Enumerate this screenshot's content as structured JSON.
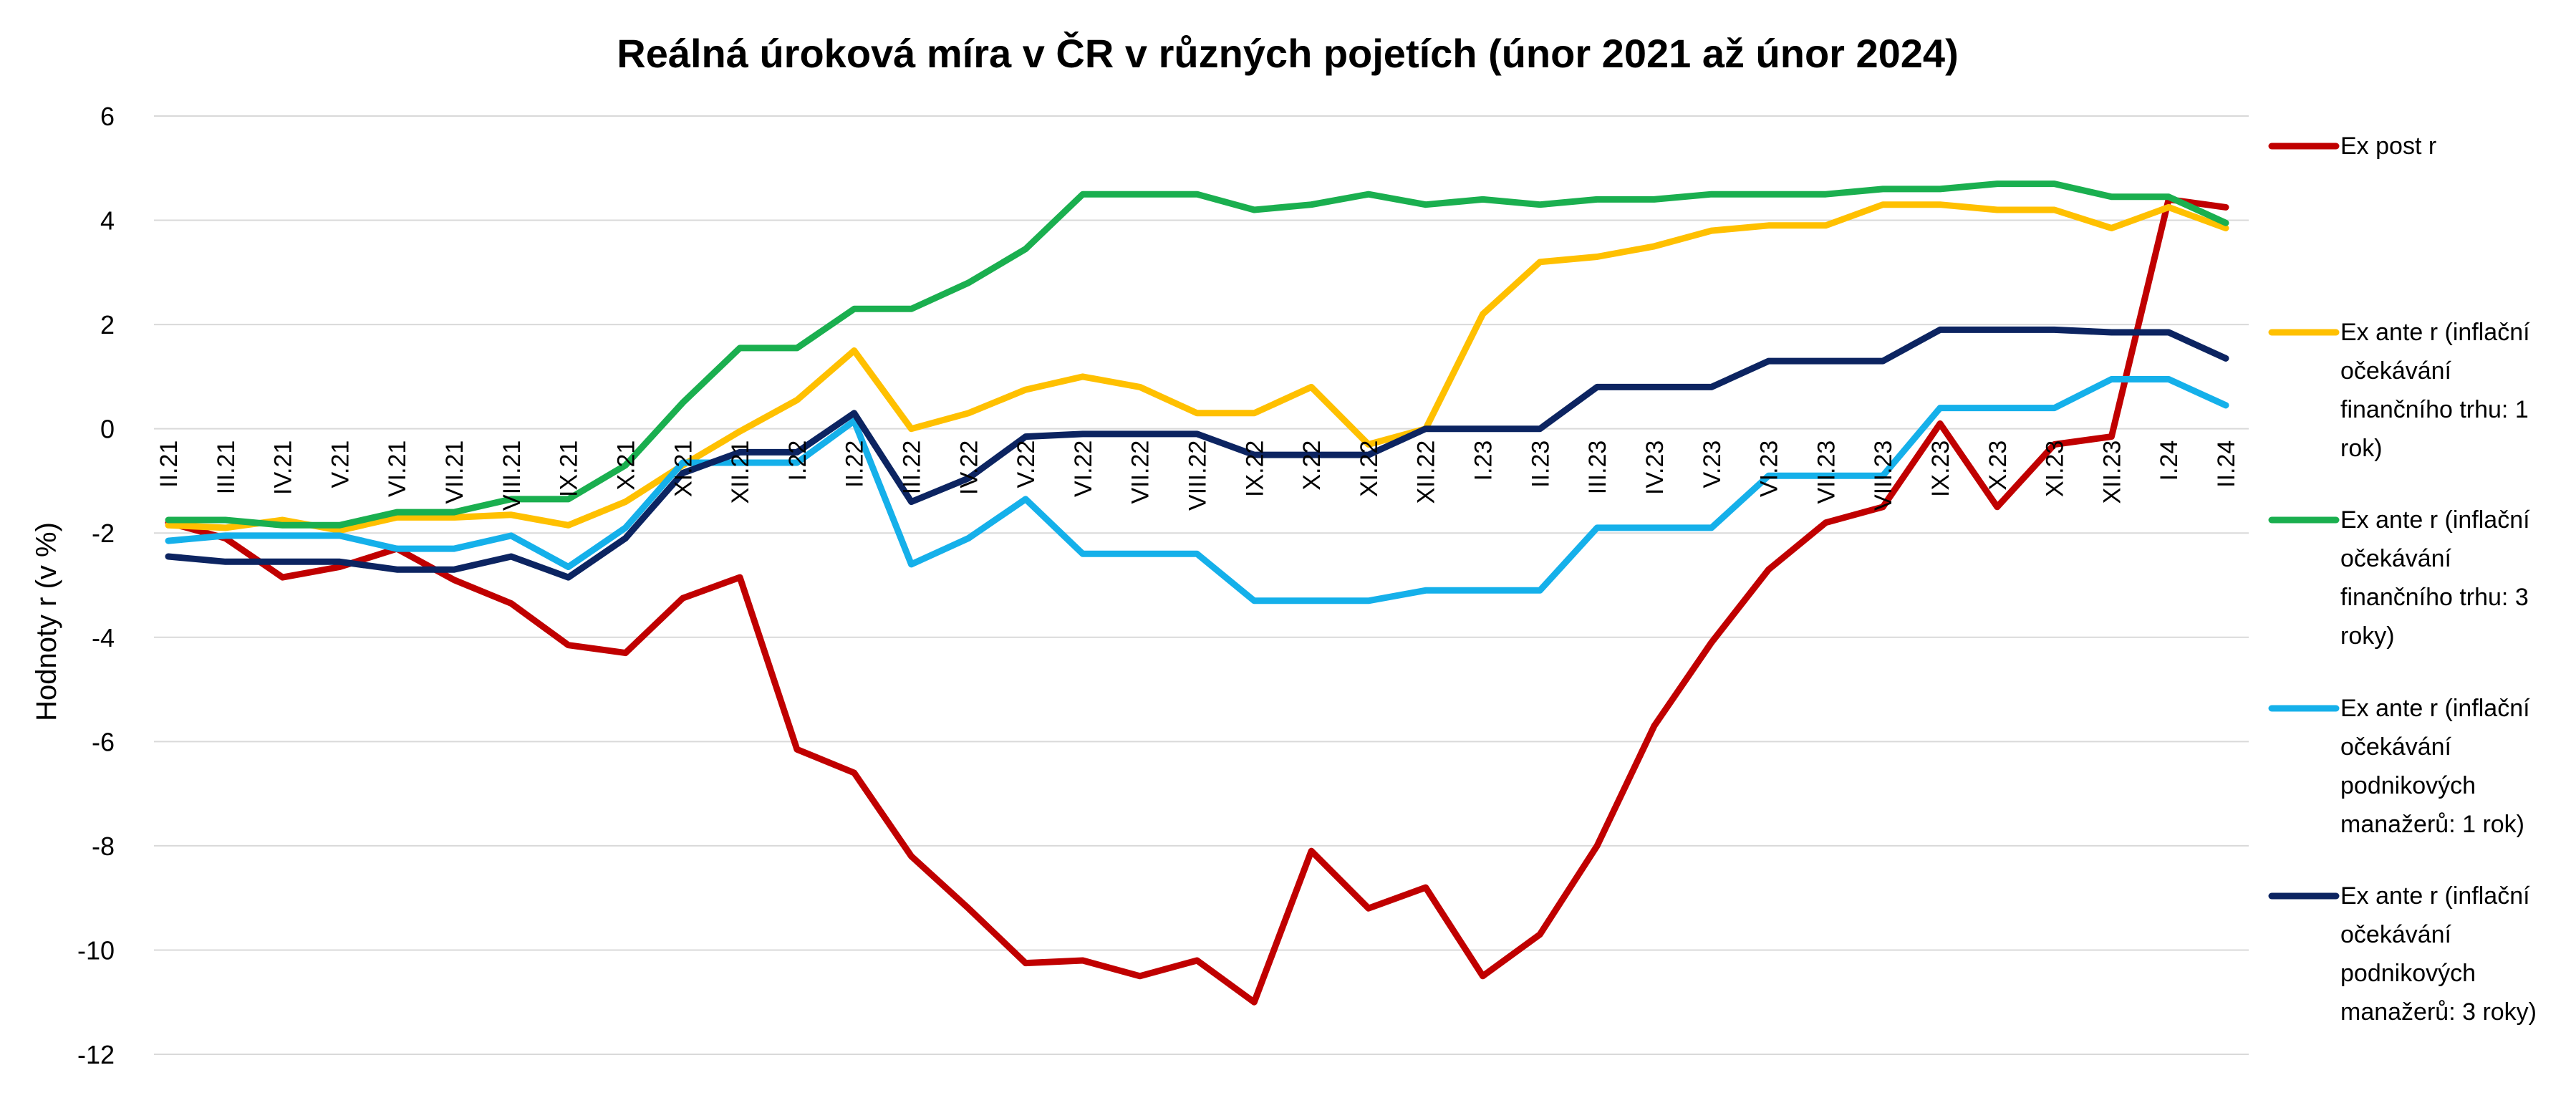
{
  "chart_data": {
    "type": "line",
    "title": "Reálná úroková míra v ČR v různých pojetích (únor 2021 až únor 2024)",
    "xlabel": "",
    "ylabel": "Hodnoty r (v %)",
    "ylim": [
      -12,
      6
    ],
    "yticks": [
      6,
      4,
      2,
      0,
      -2,
      -4,
      -6,
      -8,
      -10,
      -12
    ],
    "grid": true,
    "legend_position": "right",
    "categories": [
      "II.21",
      "III.21",
      "IV.21",
      "V.21",
      "VI.21",
      "VII.21",
      "VIII.21",
      "IX.21",
      "X.21",
      "XI.21",
      "XII.21",
      "I.22",
      "II.22",
      "III.22",
      "IV.22",
      "V.22",
      "VI.22",
      "VII.22",
      "VIII.22",
      "IX.22",
      "X.22",
      "XI.22",
      "XII.22",
      "I.23",
      "II.23",
      "III.23",
      "IV.23",
      "V.23",
      "VI.23",
      "VII.23",
      "VIII.23",
      "IX.23",
      "X.23",
      "XI.23",
      "XII.23",
      "I.24",
      "II.24"
    ],
    "series": [
      {
        "name": "Ex post r",
        "color": "#c00000",
        "values": [
          -1.8,
          -2.1,
          -2.85,
          -2.65,
          -2.3,
          -2.9,
          -3.35,
          -4.15,
          -4.3,
          -3.25,
          -2.85,
          -6.15,
          -6.6,
          -8.2,
          -9.2,
          -10.25,
          -10.2,
          -10.5,
          -10.2,
          -11.0,
          -8.1,
          -9.2,
          -8.8,
          -10.5,
          -9.7,
          -8.0,
          -5.7,
          -4.1,
          -2.7,
          -1.8,
          -1.5,
          0.1,
          -1.5,
          -0.3,
          -0.15,
          4.4,
          4.25
        ]
      },
      {
        "name": "Ex ante r (inflační očekávání finančního trhu: 1 rok)",
        "color": "#ffc000",
        "values": [
          -1.85,
          -1.9,
          -1.75,
          -1.95,
          -1.7,
          -1.7,
          -1.65,
          -1.85,
          -1.4,
          -0.7,
          -0.05,
          0.55,
          1.5,
          0.0,
          0.3,
          0.75,
          1.0,
          0.8,
          0.3,
          0.3,
          0.8,
          -0.3,
          0.0,
          2.2,
          3.2,
          3.3,
          3.5,
          3.8,
          3.9,
          3.9,
          4.3,
          4.3,
          4.2,
          4.2,
          3.85,
          4.25,
          3.85
        ]
      },
      {
        "name": "Ex ante r (inflační očekávání finančního trhu: 3 roky)",
        "color": "#1aaf4f",
        "values": [
          -1.75,
          -1.75,
          -1.85,
          -1.85,
          -1.6,
          -1.6,
          -1.35,
          -1.35,
          -0.7,
          0.5,
          1.55,
          1.55,
          2.3,
          2.3,
          2.8,
          3.45,
          4.5,
          4.5,
          4.5,
          4.2,
          4.3,
          4.5,
          4.3,
          4.4,
          4.3,
          4.4,
          4.4,
          4.5,
          4.5,
          4.5,
          4.6,
          4.6,
          4.7,
          4.7,
          4.45,
          4.45,
          3.95
        ]
      },
      {
        "name": "Ex ante r (inflační očekávání podnikových manažerů: 1 rok)",
        "color": "#15b0ea",
        "values": [
          -2.15,
          -2.05,
          -2.05,
          -2.05,
          -2.3,
          -2.3,
          -2.05,
          -2.65,
          -1.9,
          -0.65,
          -0.65,
          -0.65,
          0.15,
          -2.6,
          -2.1,
          -1.35,
          -2.4,
          -2.4,
          -2.4,
          -3.3,
          -3.3,
          -3.3,
          -3.1,
          -3.1,
          -3.1,
          -1.9,
          -1.9,
          -1.9,
          -0.9,
          -0.9,
          -0.9,
          0.4,
          0.4,
          0.4,
          0.95,
          0.95,
          0.45
        ]
      },
      {
        "name": "Ex ante r (inflační očekávání podnikových manažerů: 3 roky)",
        "color": "#0c2461",
        "values": [
          -2.45,
          -2.55,
          -2.55,
          -2.55,
          -2.7,
          -2.7,
          -2.45,
          -2.85,
          -2.1,
          -0.85,
          -0.45,
          -0.45,
          0.3,
          -1.4,
          -0.95,
          -0.15,
          -0.1,
          -0.1,
          -0.1,
          -0.5,
          -0.5,
          -0.5,
          0.0,
          0.0,
          0.0,
          0.8,
          0.8,
          0.8,
          1.3,
          1.3,
          1.3,
          1.9,
          1.9,
          1.9,
          1.85,
          1.85,
          1.35
        ]
      }
    ],
    "legend": [
      {
        "lines": [
          "Ex post r"
        ]
      },
      {
        "lines": [
          "Ex ante r (inflační",
          "očekávání",
          "finančního trhu: 1",
          "rok)"
        ]
      },
      {
        "lines": [
          "Ex ante r (inflační",
          "očekávání",
          "finančního trhu: 3",
          "roky)"
        ]
      },
      {
        "lines": [
          "Ex ante r (inflační",
          "očekávání",
          "podnikových",
          "manažerů: 1 rok)"
        ]
      },
      {
        "lines": [
          "Ex ante r (inflační",
          "očekávání",
          "podnikových",
          "manažerů: 3 roky)"
        ]
      }
    ]
  }
}
